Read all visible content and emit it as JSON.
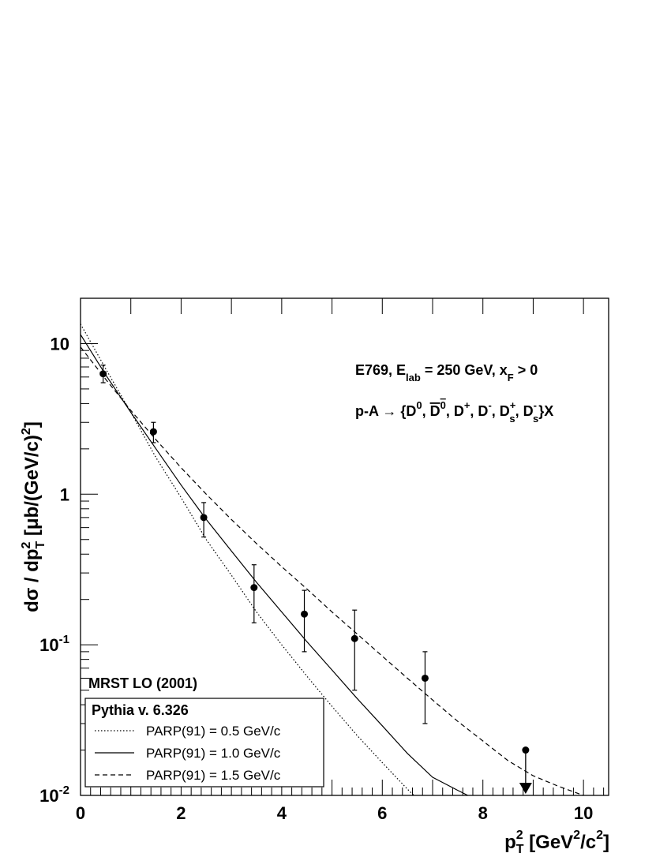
{
  "chart_data": {
    "type": "scatter",
    "xscale": "linear",
    "yscale": "log",
    "xlim": [
      0,
      10.5
    ],
    "ylim": [
      0.01,
      20
    ],
    "x_ticks": [
      0,
      2,
      4,
      6,
      8,
      10
    ],
    "x_tick_labels": [
      "0",
      "2",
      "4",
      "6",
      "8",
      "10"
    ],
    "y_ticks": [
      {
        "value": 0.01,
        "base": "10",
        "exp": "-2"
      },
      {
        "value": 0.1,
        "base": "10",
        "exp": "-1"
      },
      {
        "value": 1,
        "base": "1",
        "exp": ""
      },
      {
        "value": 10,
        "base": "10",
        "exp": ""
      }
    ],
    "xlabel": {
      "p": "p",
      "sup": "2",
      "sub": "T",
      "rest1": " [GeV",
      "rest_sup1": "2",
      "rest2": "/c",
      "rest_sup2": "2",
      "rest3": "]"
    },
    "ylabel": {
      "a": "dσ / dp",
      "sup1": "2",
      "sub1": "T",
      "b": " [μb/(GeV/c)",
      "sup2": "2",
      "c": "]"
    },
    "annotation1": {
      "a": "E769, E",
      "sub1": "lab",
      "b": " = 250 GeV, x",
      "sub2": "F",
      "c": " > 0"
    },
    "annotation2": {
      "a": "p-A → {D",
      "s1": "0",
      "b": ", ",
      "c": "D",
      "s2": "0",
      "d": ", D",
      "s3": "+",
      "e": ", D",
      "s4": "-",
      "f": ", D",
      "s5": "+",
      "sb5": "s",
      "g": ", D",
      "s6": "-",
      "sb6": "s",
      "h": "}X"
    },
    "data_points": [
      {
        "x": 0.45,
        "y": 6.3,
        "ylo": 5.5,
        "yhi": 7.2
      },
      {
        "x": 1.45,
        "y": 2.6,
        "ylo": 2.2,
        "yhi": 3.0
      },
      {
        "x": 2.45,
        "y": 0.7,
        "ylo": 0.52,
        "yhi": 0.88
      },
      {
        "x": 3.45,
        "y": 0.24,
        "ylo": 0.14,
        "yhi": 0.34
      },
      {
        "x": 4.45,
        "y": 0.16,
        "ylo": 0.09,
        "yhi": 0.23
      },
      {
        "x": 5.45,
        "y": 0.11,
        "ylo": 0.05,
        "yhi": 0.17
      },
      {
        "x": 6.85,
        "y": 0.06,
        "ylo": 0.03,
        "yhi": 0.09
      },
      {
        "x": 8.85,
        "y": 0.02,
        "ylo": 0.01,
        "yhi": 0.02,
        "upper_limit": true
      }
    ],
    "series": [
      {
        "name": "PARP(91) = 0.5 GeV/c",
        "style": "dotted",
        "x": [
          0,
          0.5,
          1,
          1.5,
          2,
          2.5,
          3,
          3.5,
          4,
          4.5,
          5,
          5.5,
          6,
          6.5,
          6.63
        ],
        "y": [
          13.5,
          6.8,
          3.5,
          1.75,
          0.95,
          0.5,
          0.29,
          0.165,
          0.1,
          0.062,
          0.039,
          0.025,
          0.0165,
          0.011,
          0.01
        ]
      },
      {
        "name": "PARP(91) = 1.0 GeV/c",
        "style": "solid",
        "x": [
          0,
          0.5,
          1,
          1.5,
          2,
          2.5,
          3,
          3.5,
          4,
          4.5,
          5,
          5.5,
          6,
          6.5,
          7,
          7.5,
          7.7
        ],
        "y": [
          11.5,
          6.2,
          3.5,
          2.0,
          1.15,
          0.68,
          0.42,
          0.26,
          0.165,
          0.105,
          0.068,
          0.044,
          0.029,
          0.019,
          0.0132,
          0.0108,
          0.01
        ]
      },
      {
        "name": "PARP(91) = 1.5 GeV/c",
        "style": "dashed",
        "x": [
          0,
          0.5,
          1,
          1.5,
          2,
          2.5,
          3,
          3.5,
          4,
          4.5,
          5,
          5.5,
          6,
          6.5,
          7,
          7.5,
          8,
          8.5,
          9,
          9.5,
          10
        ],
        "y": [
          9.5,
          5.8,
          3.6,
          2.3,
          1.5,
          1.0,
          0.68,
          0.47,
          0.33,
          0.235,
          0.165,
          0.118,
          0.084,
          0.06,
          0.043,
          0.031,
          0.023,
          0.017,
          0.0135,
          0.0115,
          0.01
        ]
      }
    ],
    "legend": {
      "placement": "bottom-left",
      "pdf_label": "MRST LO (2001)",
      "header": "Pythia v. 6.326"
    }
  }
}
